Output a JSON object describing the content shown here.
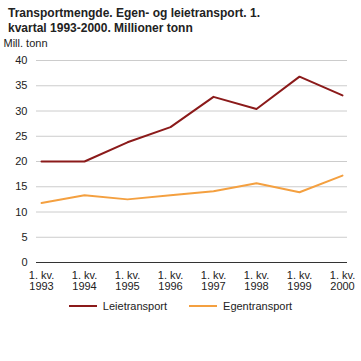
{
  "chart_data": {
    "type": "line",
    "title": "Transportmengde. Egen- og leietransport. 1. kvartal 1993-2000. Millioner tonn",
    "y_label": "Mill. tonn",
    "categories": [
      "1. kv.\n1993",
      "1. kv.\n1994",
      "1. kv.\n1995",
      "1. kv.\n1996",
      "1. kv.\n1997",
      "1. kv.\n1998",
      "1. kv.\n1999",
      "1. kv.\n2000"
    ],
    "series": [
      {
        "name": "Leietransport",
        "color": "#8b1a1a",
        "values": [
          20.0,
          20.0,
          23.8,
          26.8,
          32.8,
          30.4,
          36.8,
          33.1
        ]
      },
      {
        "name": "Egentransport",
        "color": "#f4a040",
        "values": [
          11.8,
          13.3,
          12.5,
          13.3,
          14.1,
          15.7,
          13.9,
          17.2
        ]
      }
    ],
    "ylim": [
      0,
      40
    ],
    "yticks": [
      0,
      5,
      10,
      15,
      20,
      25,
      30,
      35,
      40
    ],
    "grid": true
  }
}
